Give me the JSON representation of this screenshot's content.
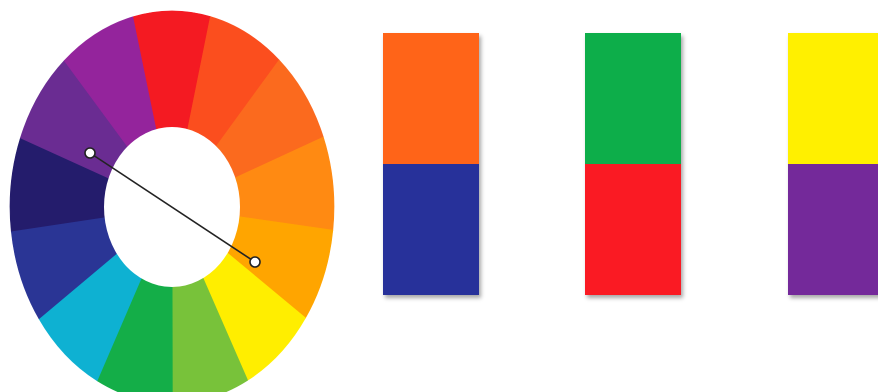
{
  "wheel": {
    "segments": [
      {
        "name": "red",
        "color": "#F41A22"
      },
      {
        "name": "red-orange",
        "color": "#FB4E1E"
      },
      {
        "name": "orange-red",
        "color": "#FB6A1E"
      },
      {
        "name": "orange",
        "color": "#FF8A12"
      },
      {
        "name": "yellow-orange",
        "color": "#FFA500"
      },
      {
        "name": "yellow",
        "color": "#FFEE00"
      },
      {
        "name": "yellow-green",
        "color": "#78C23A"
      },
      {
        "name": "green",
        "color": "#14AE48"
      },
      {
        "name": "blue-green",
        "color": "#0EB1D2"
      },
      {
        "name": "blue",
        "color": "#2A3595"
      },
      {
        "name": "indigo",
        "color": "#241C6C"
      },
      {
        "name": "violet",
        "color": "#6A2C92"
      },
      {
        "name": "red-violet",
        "color": "#94249C"
      }
    ],
    "connector": {
      "from": "violet",
      "to": "yellow"
    }
  },
  "pairs": [
    {
      "top_color": "#FF6418",
      "bottom_color": "#27319A"
    },
    {
      "top_color": "#0DAE4A",
      "bottom_color": "#FA1A23"
    },
    {
      "top_color": "#FFF000",
      "bottom_color": "#74299A"
    }
  ]
}
